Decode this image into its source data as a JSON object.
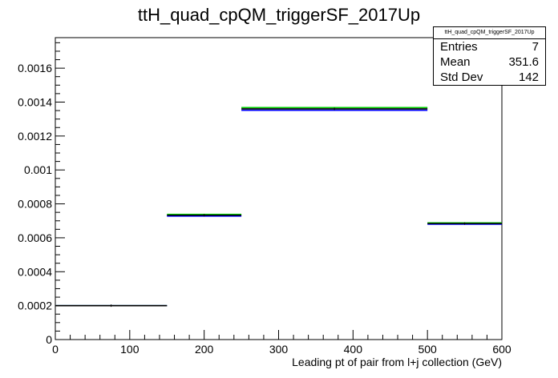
{
  "chart_data": {
    "type": "histogram",
    "title": "ttH_quad_cpQM_triggerSF_2017Up",
    "xlabel": "Leading pt of pair from l+j collection (GeV)",
    "ylabel": "",
    "xlim": [
      0,
      600
    ],
    "ylim": [
      0,
      0.00178
    ],
    "xticks": [
      0,
      100,
      200,
      300,
      400,
      500,
      600
    ],
    "yticks": [
      0,
      0.0002,
      0.0004,
      0.0006,
      0.0008,
      0.001,
      0.0012,
      0.0014,
      0.0016
    ],
    "ytick_labels": [
      "0",
      "0.0002",
      "0.0004",
      "0.0006",
      "0.0008",
      "0.001",
      "0.0012",
      "0.0014",
      "0.0016"
    ],
    "grid": false,
    "legend": "none",
    "bins": [
      {
        "xlo": 0,
        "xhi": 150,
        "values": [
          0.0002,
          0.0002,
          0.0002
        ]
      },
      {
        "xlo": 150,
        "xhi": 250,
        "values": [
          0.000738,
          0.000728,
          0.000733
        ]
      },
      {
        "xlo": 250,
        "xhi": 500,
        "values": [
          0.001368,
          0.001352,
          0.00136
        ]
      },
      {
        "xlo": 500,
        "xhi": 600,
        "values": [
          0.000688,
          0.00068,
          0.000684
        ]
      }
    ],
    "series_colors": [
      "#00cc00",
      "#0000ff",
      "#000000"
    ]
  },
  "stats": {
    "name": "ttH_quad_cpQM_triggerSF_2017Up",
    "rows": [
      {
        "label": "Entries",
        "value": "7"
      },
      {
        "label": "Mean",
        "value": "351.6"
      },
      {
        "label": "Std Dev",
        "value": "142"
      }
    ]
  }
}
